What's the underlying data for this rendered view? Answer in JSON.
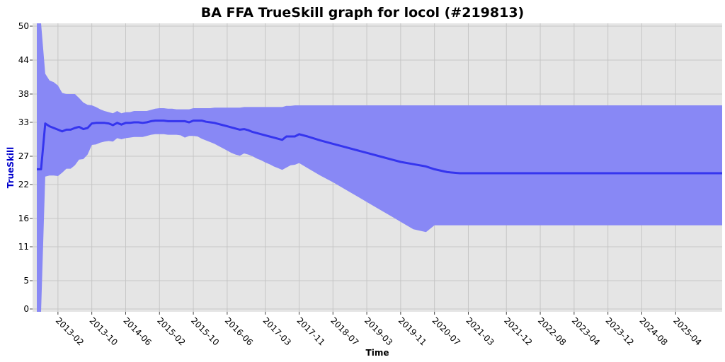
{
  "chart_data": {
    "type": "line",
    "title": "BA FFA TrueSkill graph for locol (#219813)",
    "xlabel": "Time",
    "ylabel": "TrueSkill",
    "x_tick_labels": [
      "2013-02",
      "2013-10",
      "2014-06",
      "2015-02",
      "2015-10",
      "2016-06",
      "2017-03",
      "2017-11",
      "2018-07",
      "2019-03",
      "2019-11",
      "2020-07",
      "2021-03",
      "2021-12",
      "2022-08",
      "2023-04",
      "2023-12",
      "2024-08",
      "2025-04"
    ],
    "y_ticks": [
      0,
      5,
      11,
      16,
      22,
      27,
      33,
      38,
      44,
      50
    ],
    "ylim": [
      -0.5,
      50.5
    ],
    "xlim": [
      "2012-08",
      "2026-03"
    ],
    "grid": true,
    "colors": {
      "line": "#3535ee",
      "band": "#8888f5",
      "plot_background": "#e5e5e5",
      "grid": "#c6c6c6"
    },
    "series": [
      {
        "x": [
          "2012-09",
          "2012-10",
          "2012-11",
          "2012-12",
          "2013-01",
          "2013-02",
          "2013-03",
          "2013-04",
          "2013-05",
          "2013-06",
          "2013-07",
          "2013-08",
          "2013-09",
          "2013-10",
          "2013-11",
          "2013-12",
          "2014-01",
          "2014-02",
          "2014-03",
          "2014-04",
          "2014-05",
          "2014-06",
          "2014-07",
          "2014-08",
          "2014-09",
          "2014-10",
          "2014-11",
          "2014-12",
          "2015-01",
          "2015-02",
          "2015-03",
          "2015-04",
          "2015-05",
          "2015-06",
          "2015-07",
          "2015-08",
          "2015-09",
          "2015-10",
          "2015-11",
          "2015-12",
          "2016-01",
          "2016-02",
          "2016-03",
          "2016-04",
          "2016-05",
          "2016-06",
          "2016-07",
          "2016-08",
          "2016-09",
          "2016-10",
          "2016-11",
          "2016-12",
          "2017-01",
          "2017-02",
          "2017-03",
          "2017-04",
          "2017-05",
          "2017-06",
          "2017-07",
          "2017-08",
          "2017-09",
          "2017-10",
          "2017-11",
          "2018-01",
          "2018-04",
          "2018-07",
          "2018-10",
          "2019-01",
          "2019-03",
          "2019-06",
          "2019-09",
          "2019-11",
          "2020-02",
          "2020-05",
          "2020-07",
          "2020-10",
          "2021-01",
          "2021-03",
          "2021-12",
          "2022-08",
          "2023-04",
          "2023-12",
          "2024-08",
          "2025-04",
          "2026-03"
        ],
        "y": [
          24.7,
          24.7,
          32.8,
          32.3,
          32.0,
          31.7,
          31.4,
          31.7,
          31.7,
          32.0,
          32.2,
          31.8,
          32.0,
          32.8,
          32.9,
          32.9,
          32.9,
          32.8,
          32.5,
          32.9,
          32.6,
          32.9,
          32.9,
          33.0,
          33.0,
          32.9,
          33.0,
          33.2,
          33.3,
          33.3,
          33.3,
          33.2,
          33.2,
          33.2,
          33.2,
          33.2,
          33.0,
          33.3,
          33.3,
          33.3,
          33.1,
          33.0,
          32.9,
          32.7,
          32.5,
          32.3,
          32.1,
          31.9,
          31.7,
          31.8,
          31.6,
          31.3,
          31.1,
          30.9,
          30.7,
          30.5,
          30.3,
          30.1,
          29.9,
          30.5,
          30.5,
          30.5,
          30.9,
          30.5,
          29.8,
          29.2,
          28.6,
          28.0,
          27.6,
          27.0,
          26.4,
          26.0,
          25.6,
          25.2,
          24.7,
          24.2,
          24.0,
          24.0,
          24.0,
          24.0,
          24.0,
          24.0,
          24.0,
          24.0,
          24.0
        ]
      }
    ],
    "band": {
      "upper": [
        50.5,
        50.5,
        41.6,
        40.4,
        40.1,
        39.5,
        38.2,
        38.0,
        38.0,
        38.0,
        37.3,
        36.5,
        36.1,
        36.0,
        35.7,
        35.3,
        35.0,
        34.8,
        34.6,
        35.0,
        34.6,
        34.8,
        34.8,
        35.0,
        35.0,
        35.0,
        35.0,
        35.2,
        35.4,
        35.5,
        35.5,
        35.4,
        35.4,
        35.3,
        35.3,
        35.3,
        35.3,
        35.5,
        35.5,
        35.5,
        35.5,
        35.5,
        35.6,
        35.6,
        35.6,
        35.6,
        35.6,
        35.6,
        35.6,
        35.7,
        35.7,
        35.7,
        35.7,
        35.7,
        35.7,
        35.7,
        35.7,
        35.7,
        35.7,
        35.9,
        35.9,
        36.0,
        36.0,
        36.0,
        36.0,
        36.0,
        36.0,
        36.0,
        36.0,
        36.0,
        36.0,
        36.0,
        36.0,
        36.0,
        36.0,
        36.0,
        36.0,
        36.0,
        36.0,
        36.0,
        36.0,
        36.0,
        36.0,
        36.0,
        36.0
      ],
      "lower": [
        -1.0,
        -1.0,
        23.4,
        23.6,
        23.6,
        23.5,
        24.1,
        24.8,
        24.8,
        25.4,
        26.4,
        26.5,
        27.3,
        29.0,
        29.1,
        29.4,
        29.6,
        29.7,
        29.6,
        30.2,
        30.0,
        30.2,
        30.3,
        30.4,
        30.4,
        30.4,
        30.6,
        30.8,
        30.9,
        30.9,
        30.9,
        30.8,
        30.8,
        30.8,
        30.7,
        30.3,
        30.6,
        30.6,
        30.5,
        30.1,
        29.8,
        29.5,
        29.2,
        28.8,
        28.4,
        28.0,
        27.6,
        27.3,
        27.1,
        27.5,
        27.3,
        27.0,
        26.6,
        26.3,
        25.9,
        25.6,
        25.2,
        24.9,
        24.6,
        25.0,
        25.4,
        25.5,
        25.8,
        24.9,
        23.6,
        22.4,
        21.1,
        19.8,
        18.9,
        17.6,
        16.3,
        15.4,
        14.1,
        13.6,
        14.8,
        14.8,
        14.8,
        14.8,
        14.8,
        14.8,
        14.8,
        14.8,
        14.8,
        14.8,
        14.8
      ]
    }
  }
}
